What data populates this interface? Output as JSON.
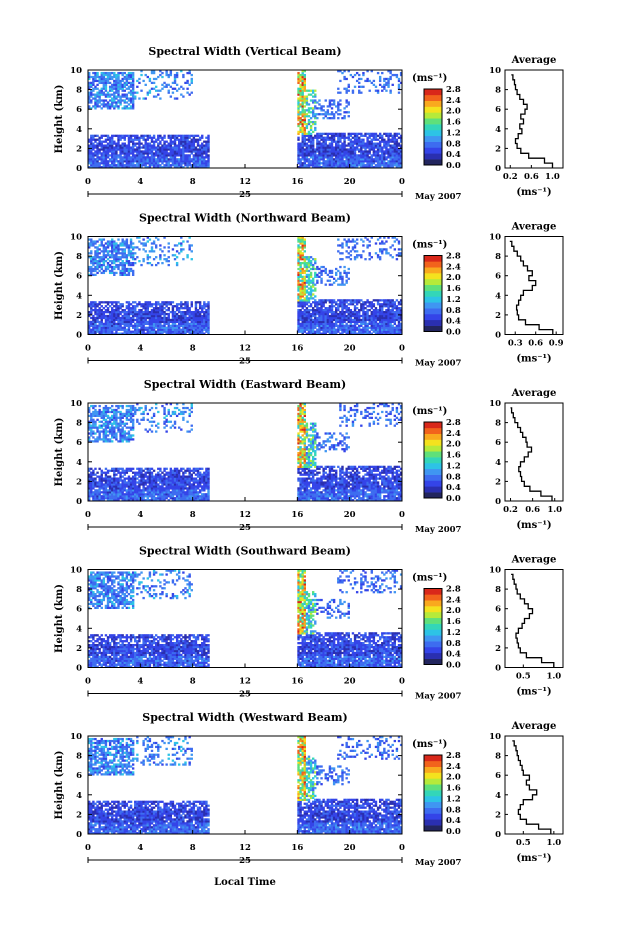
{
  "chart_data": [
    {
      "type": "heatmap",
      "title": "Spectral Width (Vertical Beam)",
      "ylabel": "Height (km)",
      "ylim": [
        0,
        10
      ],
      "yticks": [
        "0",
        "2",
        "4",
        "6",
        "8",
        "10"
      ],
      "xlim": [
        0,
        24
      ],
      "xticks": [
        "0",
        "4",
        "8",
        "12",
        "16",
        "20",
        "0"
      ],
      "date_day": "25",
      "date_month": "May 2007",
      "colorbar": {
        "unit": "(ms⁻¹)",
        "ticks": [
          "0.0",
          "0.4",
          "0.8",
          "1.2",
          "1.6",
          "2.0",
          "2.4",
          "2.8"
        ]
      },
      "profile": {
        "title": "Average",
        "xlabel": "(ms⁻¹)",
        "xticks": [
          "0.2",
          "0.6",
          "1.0"
        ],
        "xlim": [
          0.1,
          1.2
        ],
        "heights": [
          0,
          0.5,
          1,
          1.5,
          2,
          2.5,
          3,
          3.5,
          4,
          4.5,
          5,
          5.5,
          6,
          6.5,
          7,
          7.5,
          8,
          8.5,
          9,
          9.5
        ],
        "values": [
          1.0,
          0.85,
          0.55,
          0.4,
          0.33,
          0.3,
          0.35,
          0.42,
          0.38,
          0.45,
          0.4,
          0.48,
          0.52,
          0.45,
          0.38,
          0.33,
          0.3,
          0.28,
          0.25,
          0.22
        ]
      }
    },
    {
      "type": "heatmap",
      "title": "Spectral Width (Northward Beam)",
      "ylabel": "Height (km)",
      "ylim": [
        0,
        10
      ],
      "yticks": [
        "0",
        "2",
        "4",
        "6",
        "8",
        "10"
      ],
      "xlim": [
        0,
        24
      ],
      "xticks": [
        "0",
        "4",
        "8",
        "12",
        "16",
        "20",
        "0"
      ],
      "date_day": "25",
      "date_month": "May 2007",
      "colorbar": {
        "unit": "(ms⁻¹)",
        "ticks": [
          "0.0",
          "0.4",
          "0.8",
          "1.2",
          "1.6",
          "2.0",
          "2.4",
          "2.8"
        ]
      },
      "profile": {
        "title": "Average",
        "xlabel": "(ms⁻¹)",
        "xticks": [
          "0.3",
          "0.6",
          "0.9"
        ],
        "xlim": [
          0.15,
          1.0
        ],
        "heights": [
          0,
          0.5,
          1,
          1.5,
          2,
          2.5,
          3,
          3.5,
          4,
          4.5,
          5,
          5.5,
          6,
          6.5,
          7,
          7.5,
          8,
          8.5,
          9,
          9.5
        ],
        "values": [
          0.85,
          0.65,
          0.45,
          0.35,
          0.33,
          0.32,
          0.35,
          0.38,
          0.42,
          0.55,
          0.6,
          0.5,
          0.55,
          0.48,
          0.42,
          0.38,
          0.33,
          0.28,
          0.25,
          0.22
        ]
      }
    },
    {
      "type": "heatmap",
      "title": "Spectral Width (Eastward Beam)",
      "ylabel": "Height (km)",
      "ylim": [
        0,
        10
      ],
      "yticks": [
        "0",
        "2",
        "4",
        "6",
        "8",
        "10"
      ],
      "xlim": [
        0,
        24
      ],
      "xticks": [
        "0",
        "4",
        "8",
        "12",
        "16",
        "20",
        "0"
      ],
      "date_day": "25",
      "date_month": "May 2007",
      "colorbar": {
        "unit": "(ms⁻¹)",
        "ticks": [
          "0.0",
          "0.4",
          "0.8",
          "1.2",
          "1.6",
          "2.0",
          "2.4",
          "2.8"
        ]
      },
      "profile": {
        "title": "Average",
        "xlabel": "(ms⁻¹)",
        "xticks": [
          "0.2",
          "0.6",
          "1.0"
        ],
        "xlim": [
          0.1,
          1.15
        ],
        "heights": [
          0,
          0.5,
          1,
          1.5,
          2,
          2.5,
          3,
          3.5,
          4,
          4.5,
          5,
          5.5,
          6,
          6.5,
          7,
          7.5,
          8,
          8.5,
          9,
          9.5
        ],
        "values": [
          0.95,
          0.75,
          0.55,
          0.45,
          0.4,
          0.38,
          0.35,
          0.38,
          0.45,
          0.52,
          0.58,
          0.5,
          0.48,
          0.42,
          0.38,
          0.33,
          0.28,
          0.25,
          0.22,
          0.2
        ]
      }
    },
    {
      "type": "heatmap",
      "title": "Spectral Width (Southward Beam)",
      "ylabel": "Height (km)",
      "ylim": [
        0,
        10
      ],
      "yticks": [
        "0",
        "2",
        "4",
        "6",
        "8",
        "10"
      ],
      "xlim": [
        0,
        24
      ],
      "xticks": [
        "0",
        "4",
        "8",
        "12",
        "16",
        "20",
        "0"
      ],
      "date_day": "25",
      "date_month": "May 2007",
      "colorbar": {
        "unit": "(ms⁻¹)",
        "ticks": [
          "0.0",
          "0.4",
          "0.8",
          "1.2",
          "1.6",
          "2.0",
          "2.4",
          "2.8"
        ]
      },
      "profile": {
        "title": "Average",
        "xlabel": "(ms⁻¹)",
        "xticks": [
          "0.5",
          "1.0"
        ],
        "xlim": [
          0.2,
          1.15
        ],
        "heights": [
          0,
          0.5,
          1,
          1.5,
          2,
          2.5,
          3,
          3.5,
          4,
          4.5,
          5,
          5.5,
          6,
          6.5,
          7,
          7.5,
          8,
          8.5,
          9,
          9.5
        ],
        "values": [
          1.0,
          0.8,
          0.55,
          0.45,
          0.42,
          0.4,
          0.38,
          0.42,
          0.48,
          0.52,
          0.6,
          0.65,
          0.58,
          0.52,
          0.45,
          0.4,
          0.38,
          0.35,
          0.33,
          0.3
        ]
      }
    },
    {
      "type": "heatmap",
      "title": "Spectral Width (Westward Beam)",
      "ylabel": "Height (km)",
      "ylim": [
        0,
        10
      ],
      "yticks": [
        "0",
        "2",
        "4",
        "6",
        "8",
        "10"
      ],
      "xlim": [
        0,
        24
      ],
      "xticks": [
        "0",
        "4",
        "8",
        "12",
        "16",
        "20",
        "0"
      ],
      "date_day": "25",
      "date_month": "May 2007",
      "xlabel": "Local Time",
      "colorbar": {
        "unit": "(ms⁻¹)",
        "ticks": [
          "0.0",
          "0.4",
          "0.8",
          "1.2",
          "1.6",
          "2.0",
          "2.4",
          "2.8"
        ]
      },
      "profile": {
        "title": "Average",
        "xlabel": "(ms⁻¹)",
        "xticks": [
          "0.5",
          "1.0"
        ],
        "xlim": [
          0.2,
          1.15
        ],
        "heights": [
          0,
          0.5,
          1,
          1.5,
          2,
          2.5,
          3,
          3.5,
          4,
          4.5,
          5,
          5.5,
          6,
          6.5,
          7,
          7.5,
          8,
          8.5,
          9,
          9.5
        ],
        "values": [
          0.95,
          0.75,
          0.55,
          0.45,
          0.42,
          0.45,
          0.5,
          0.65,
          0.72,
          0.6,
          0.55,
          0.6,
          0.5,
          0.48,
          0.45,
          0.42,
          0.4,
          0.38,
          0.35,
          0.32
        ]
      }
    }
  ]
}
